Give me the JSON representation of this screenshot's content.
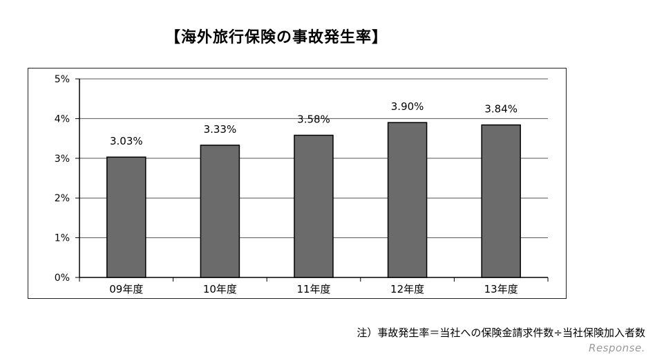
{
  "chart_data": {
    "type": "bar",
    "title": "【海外旅行保険の事故発生率】",
    "categories": [
      "09年度",
      "10年度",
      "11年度",
      "12年度",
      "13年度"
    ],
    "values": [
      3.03,
      3.33,
      3.58,
      3.9,
      3.84
    ],
    "data_labels": [
      "3.03%",
      "3.33%",
      "3.58%",
      "3.90%",
      "3.84%"
    ],
    "y_ticks": [
      "0%",
      "1%",
      "2%",
      "3%",
      "4%",
      "5%"
    ],
    "ylim": [
      0,
      5
    ],
    "grid": true,
    "bar_color": "#6b6b6b",
    "legend": "none"
  },
  "footnote": "注）事故発生率＝当社への保険金請求件数÷当社保険加入者数",
  "watermark": "Response."
}
